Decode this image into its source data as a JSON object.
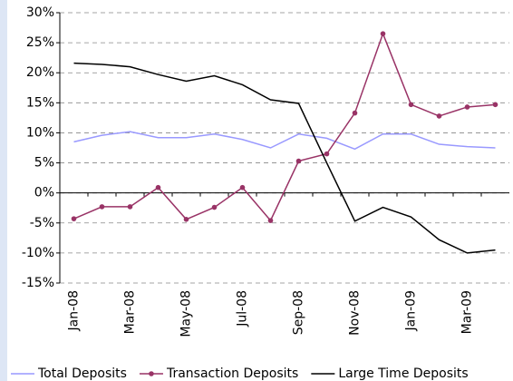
{
  "chart_data": {
    "type": "line",
    "categories": [
      "Jan-08",
      null,
      "Mar-08",
      null,
      "May-08",
      null,
      "Jul-08",
      null,
      "Sep-08",
      null,
      "Nov-08",
      null,
      "Jan-09",
      null,
      "Mar-09",
      null
    ],
    "series": [
      {
        "name": "Total Deposits",
        "color": "#9999ff",
        "marker": false,
        "values": [
          8.5,
          9.6,
          10.2,
          9.2,
          9.2,
          9.8,
          8.9,
          7.5,
          9.8,
          9.1,
          7.3,
          9.8,
          9.8,
          8.1,
          7.7,
          7.5
        ]
      },
      {
        "name": "Transaction Deposits",
        "color": "#993366",
        "marker": true,
        "values": [
          -4.3,
          -2.3,
          -2.3,
          0.9,
          -4.4,
          -2.4,
          0.9,
          -4.6,
          5.3,
          6.5,
          13.3,
          26.5,
          14.7,
          12.8,
          14.3,
          14.7
        ]
      },
      {
        "name": "Large Time Deposits",
        "color": "#000000",
        "marker": false,
        "values": [
          21.6,
          21.4,
          21.0,
          19.7,
          18.6,
          19.5,
          18.0,
          15.5,
          14.9,
          5.0,
          -4.7,
          -2.4,
          -4.0,
          -7.8,
          -10.0,
          -9.5
        ]
      }
    ],
    "ylim": [
      -15,
      30
    ],
    "yticks": [
      {
        "value": -15,
        "label": "-15%"
      },
      {
        "value": -10,
        "label": "-10%"
      },
      {
        "value": -5,
        "label": "-5%"
      },
      {
        "value": 0,
        "label": "0%"
      },
      {
        "value": 5,
        "label": "5%"
      },
      {
        "value": 10,
        "label": "10%"
      },
      {
        "value": 15,
        "label": "15%"
      },
      {
        "value": 20,
        "label": "20%"
      },
      {
        "value": 25,
        "label": "25%"
      },
      {
        "value": 30,
        "label": "30%"
      }
    ],
    "grid": true
  }
}
